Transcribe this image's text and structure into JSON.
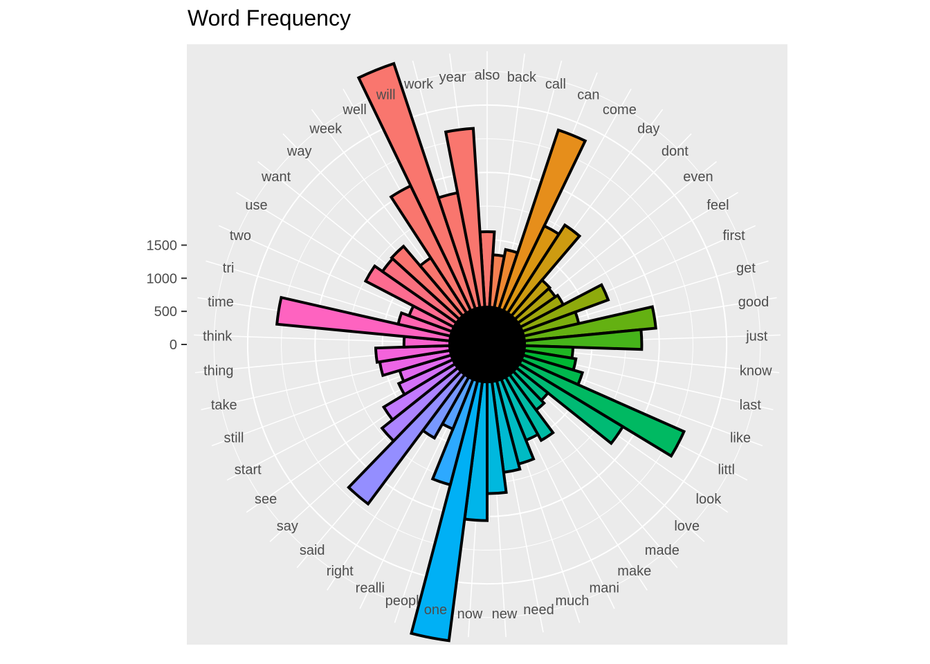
{
  "chart_data": {
    "type": "bar",
    "coord": "polar",
    "title": "Word Frequency",
    "xlabel": "",
    "ylabel": "",
    "ylim": [
      0,
      1900
    ],
    "y_ticks": [
      0,
      500,
      1000,
      1500
    ],
    "grid": true,
    "legend": "none",
    "categories": [
      "also",
      "back",
      "call",
      "can",
      "come",
      "day",
      "dont",
      "even",
      "feel",
      "first",
      "get",
      "good",
      "just",
      "know",
      "last",
      "like",
      "littl",
      "look",
      "love",
      "made",
      "make",
      "mani",
      "much",
      "need",
      "new",
      "now",
      "one",
      "peopl",
      "realli",
      "right",
      "said",
      "say",
      "see",
      "start",
      "still",
      "take",
      "thing",
      "think",
      "time",
      "tri",
      "two",
      "use",
      "want",
      "way",
      "week",
      "well",
      "will",
      "work",
      "year"
    ],
    "values": [
      560,
      390,
      440,
      1400,
      700,
      780,
      350,
      340,
      360,
      680,
      420,
      980,
      870,
      360,
      390,
      460,
      1320,
      900,
      300,
      330,
      540,
      490,
      640,
      680,
      830,
      1030,
      1940,
      800,
      400,
      520,
      1200,
      720,
      620,
      440,
      400,
      530,
      550,
      340,
      1290,
      400,
      340,
      740,
      670,
      680,
      490,
      1030,
      1920,
      870,
      1330
    ],
    "colors": [
      "#F9766E",
      "#F57F52",
      "#EE8731",
      "#E68E1B",
      "#DA9612",
      "#CD9B11",
      "#BF9F0F",
      "#AFA30E",
      "#9FA70C",
      "#8EAA0C",
      "#7BAE0E",
      "#64B112",
      "#46B41A",
      "#1FB623",
      "#00B733",
      "#00B84D",
      "#00B962",
      "#00BA74",
      "#00BA85",
      "#00BB96",
      "#00BBA5",
      "#00BCB5",
      "#00BBC3",
      "#00BAD1",
      "#00B8DE",
      "#00B5EA",
      "#00B0F5",
      "#2DA9FF",
      "#58A1FF",
      "#7898FF",
      "#948EFF",
      "#AC84FF",
      "#C27AFE",
      "#D471F8",
      "#E26AF0",
      "#EC65E6",
      "#F463DB",
      "#FA62CE",
      "#FE63C0",
      "#FF65B1",
      "#FF68A1",
      "#FD6C90",
      "#FA6F7E",
      "#F9736F",
      "#F9766E",
      "#F9766E",
      "#F9766E",
      "#F9766E",
      "#F9766E"
    ]
  }
}
